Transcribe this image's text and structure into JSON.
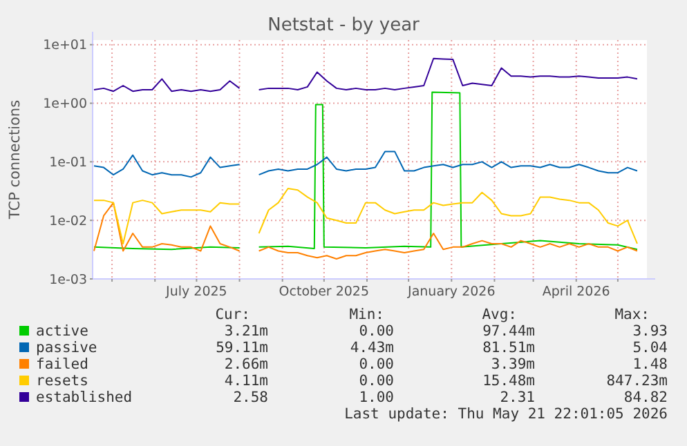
{
  "chart_data": {
    "type": "line",
    "title": "Netstat - by year",
    "ylabel": "TCP connections",
    "log": true,
    "grid": true,
    "legend": "bottom",
    "xlim": [
      "2025-04-17",
      "2026-05-22"
    ],
    "ylim": [
      0.001,
      12
    ],
    "yticks": [
      {
        "value": 0.001,
        "label": "1e-03"
      },
      {
        "value": 0.01,
        "label": "1e-02"
      },
      {
        "value": 0.1,
        "label": "1e-01"
      },
      {
        "value": 1,
        "label": "1e+00"
      },
      {
        "value": 10,
        "label": "1e+01"
      }
    ],
    "xticks": [
      {
        "value": "2025-05-01",
        "label": null
      },
      {
        "value": "2025-06-01",
        "label": null
      },
      {
        "value": "2025-07-01",
        "label": "July 2025"
      },
      {
        "value": "2025-08-01",
        "label": null
      },
      {
        "value": "2025-09-01",
        "label": null
      },
      {
        "value": "2025-10-01",
        "label": "October 2025"
      },
      {
        "value": "2025-11-01",
        "label": null
      },
      {
        "value": "2025-12-01",
        "label": null
      },
      {
        "value": "2026-01-01",
        "label": "January 2026"
      },
      {
        "value": "2026-02-01",
        "label": null
      },
      {
        "value": "2026-03-01",
        "label": null
      },
      {
        "value": "2026-04-01",
        "label": "April 2026"
      },
      {
        "value": "2026-05-01",
        "label": null
      }
    ],
    "x": [
      "2025-04-18",
      "2025-04-25",
      "2025-05-02",
      "2025-05-09",
      "2025-05-16",
      "2025-05-23",
      "2025-05-30",
      "2025-06-06",
      "2025-06-13",
      "2025-06-20",
      "2025-06-27",
      "2025-07-04",
      "2025-07-11",
      "2025-07-18",
      "2025-07-25",
      "2025-08-01",
      "2025-08-08",
      "2025-08-15",
      "2025-08-22",
      "2025-08-29",
      "2025-09-05",
      "2025-09-12",
      "2025-09-19",
      "2025-09-26",
      "2025-10-03",
      "2025-10-10",
      "2025-10-17",
      "2025-10-24",
      "2025-10-31",
      "2025-11-07",
      "2025-11-14",
      "2025-11-21",
      "2025-11-28",
      "2025-12-05",
      "2025-12-12",
      "2025-12-19",
      "2025-12-26",
      "2026-01-02",
      "2026-01-09",
      "2026-01-16",
      "2026-01-23",
      "2026-01-30",
      "2026-02-06",
      "2026-02-13",
      "2026-02-20",
      "2026-02-27",
      "2026-03-06",
      "2026-03-13",
      "2026-03-20",
      "2026-03-27",
      "2026-04-03",
      "2026-04-10",
      "2026-04-17",
      "2026-04-24",
      "2026-05-01",
      "2026-05-08",
      "2026-05-15"
    ],
    "series": [
      {
        "name": "active",
        "color": "#00cc00",
        "x": [
          "2025-04-18",
          "2025-05-16",
          "2025-06-13",
          "2025-07-11",
          "2025-08-01",
          "2025-08-08",
          "2025-08-15",
          "2025-09-05",
          "2025-09-24",
          "2025-09-25",
          "2025-09-30",
          "2025-10-01",
          "2025-10-31",
          "2025-11-28",
          "2025-12-17",
          "2025-12-18",
          "2026-01-07",
          "2026-01-08",
          "2026-02-06",
          "2026-03-06",
          "2026-04-03",
          "2026-05-01",
          "2026-05-15"
        ],
        "values": [
          0.0035,
          0.0033,
          0.0032,
          0.0035,
          0.0034,
          null,
          0.0035,
          0.0036,
          0.0033,
          0.95,
          0.95,
          0.0035,
          0.0034,
          0.0036,
          0.0035,
          1.55,
          1.5,
          0.0035,
          0.004,
          0.0045,
          0.004,
          0.0038,
          0.0032
        ]
      },
      {
        "name": "passive",
        "color": "#0066b3",
        "values": [
          0.085,
          0.08,
          0.06,
          0.075,
          0.13,
          0.07,
          0.06,
          0.065,
          0.06,
          0.06,
          0.055,
          0.065,
          0.12,
          0.08,
          0.085,
          0.09,
          null,
          0.06,
          0.07,
          0.075,
          0.07,
          0.075,
          0.075,
          0.09,
          0.12,
          0.075,
          0.07,
          0.075,
          0.075,
          0.08,
          0.15,
          0.15,
          0.07,
          0.07,
          0.08,
          0.085,
          0.09,
          0.08,
          0.09,
          0.09,
          0.1,
          0.08,
          0.1,
          0.08,
          0.085,
          0.085,
          0.08,
          0.09,
          0.08,
          0.08,
          0.09,
          0.08,
          0.07,
          0.065,
          0.065,
          0.08,
          0.07
        ]
      },
      {
        "name": "failed",
        "color": "#ff8000",
        "values": [
          0.003,
          0.012,
          0.02,
          0.003,
          0.006,
          0.0035,
          0.0035,
          0.004,
          0.0038,
          0.0035,
          0.0035,
          0.003,
          0.008,
          0.004,
          0.0035,
          0.003,
          null,
          0.003,
          0.0035,
          0.003,
          0.0028,
          0.0028,
          0.0025,
          0.0023,
          0.0025,
          0.0022,
          0.0025,
          0.0025,
          0.0028,
          0.003,
          0.0032,
          0.003,
          0.0028,
          0.003,
          0.0032,
          0.006,
          0.0032,
          0.0035,
          0.0035,
          0.004,
          0.0045,
          0.004,
          0.004,
          0.0035,
          0.0045,
          0.004,
          0.0035,
          0.004,
          0.0035,
          0.004,
          0.0035,
          0.004,
          0.0035,
          0.0035,
          0.003,
          0.0035,
          0.003
        ]
      },
      {
        "name": "resets",
        "color": "#ffcc00",
        "values": [
          0.022,
          0.022,
          0.02,
          0.004,
          0.02,
          0.022,
          0.02,
          0.013,
          0.014,
          0.015,
          0.015,
          0.015,
          0.014,
          0.02,
          0.019,
          0.019,
          null,
          0.006,
          0.015,
          0.02,
          0.035,
          0.033,
          0.025,
          0.02,
          0.011,
          0.01,
          0.009,
          0.009,
          0.02,
          0.02,
          0.015,
          0.013,
          0.014,
          0.015,
          0.015,
          0.02,
          0.018,
          0.019,
          0.02,
          0.02,
          0.03,
          0.022,
          0.013,
          0.012,
          0.012,
          0.013,
          0.025,
          0.025,
          0.023,
          0.022,
          0.02,
          0.02,
          0.015,
          0.009,
          0.008,
          0.01,
          0.004
        ]
      },
      {
        "name": "established",
        "color": "#330099",
        "values": [
          1.7,
          1.8,
          1.6,
          2.0,
          1.6,
          1.7,
          1.7,
          2.6,
          1.6,
          1.7,
          1.6,
          1.7,
          1.6,
          1.7,
          2.4,
          1.8,
          null,
          1.7,
          1.8,
          1.8,
          1.8,
          1.7,
          1.9,
          3.4,
          2.4,
          1.8,
          1.7,
          1.8,
          1.7,
          1.7,
          1.8,
          1.7,
          1.8,
          1.9,
          2.0,
          5.8,
          5.7,
          5.6,
          2.0,
          2.2,
          2.1,
          2.0,
          4.0,
          2.9,
          2.9,
          2.8,
          2.9,
          2.9,
          2.8,
          2.8,
          2.9,
          2.8,
          2.7,
          2.7,
          2.7,
          2.8,
          2.6
        ]
      }
    ],
    "annotations": [
      "Cur:",
      "Min:",
      "Avg:",
      "Max:",
      "3.21m",
      "0.00",
      "97.44m",
      "3.93",
      "59.11m",
      "4.43m",
      "81.51m",
      "5.04",
      "2.66m",
      "0.00",
      "3.39m",
      "1.48",
      "4.11m",
      "0.00",
      "15.48m",
      "847.23m",
      "2.58",
      "1.00",
      "2.31",
      "84.82",
      "Last update: Thu May 21 22:01:05 2026"
    ]
  }
}
